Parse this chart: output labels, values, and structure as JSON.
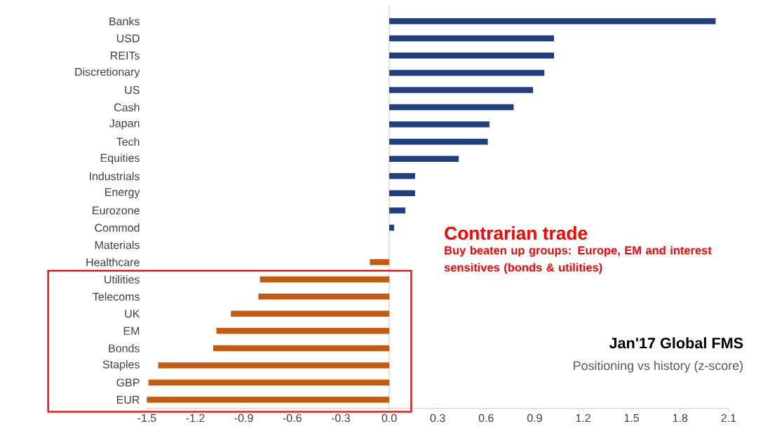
{
  "chart_data": {
    "type": "bar",
    "orientation": "horizontal",
    "title": "Jan'17 Global FMS",
    "subtitle": "Positioning vs history (z-score)",
    "categories": [
      "Banks",
      "USD",
      "REITs",
      "Discretionary",
      "US",
      "Cash",
      "Japan",
      "Tech",
      "Equities",
      "Industrials",
      "Energy",
      "Eurozone",
      "Commod",
      "Materials",
      "Healthcare",
      "Utilities",
      "Telecoms",
      "UK",
      "EM",
      "Bonds",
      "Staples",
      "GBP",
      "EUR"
    ],
    "values": [
      2.02,
      1.02,
      1.02,
      0.96,
      0.89,
      0.77,
      0.62,
      0.61,
      0.43,
      0.16,
      0.16,
      0.1,
      0.03,
      0,
      -0.12,
      -0.8,
      -0.81,
      -0.98,
      -1.07,
      -1.09,
      -1.43,
      -1.49,
      -1.5
    ],
    "colors": [
      "#1f3f7f",
      "#1f3f7f",
      "#1f3f7f",
      "#1f3f7f",
      "#1f3f7f",
      "#1f3f7f",
      "#1f3f7f",
      "#1f3f7f",
      "#1f3f7f",
      "#1f3f7f",
      "#1f3f7f",
      "#1f3f7f",
      "#1f3f7f",
      "#1f3f7f",
      "#c55a11",
      "#c55a11",
      "#c55a11",
      "#c55a11",
      "#c55a11",
      "#c55a11",
      "#c55a11",
      "#c55a11",
      "#c55a11"
    ],
    "xlim": [
      -1.5,
      2.1
    ],
    "xticks": [
      -1.5,
      -1.2,
      -0.9,
      -0.6,
      -0.3,
      {
        "value": 0,
        "label": "0.0"
      },
      0.3,
      0.6,
      0.9,
      1.2,
      1.5,
      1.8,
      2.1
    ],
    "annotations": [
      "Contrarian trade",
      "Buy beaten up groups: Europe, EM and interest sensitives (bonds & utilities)"
    ]
  }
}
